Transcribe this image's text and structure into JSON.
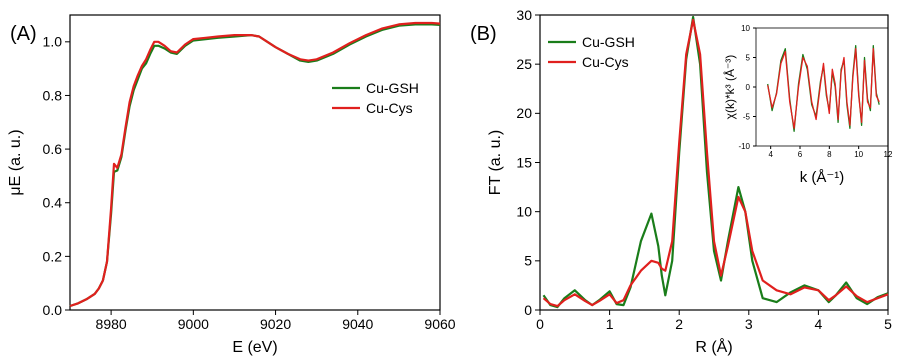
{
  "colors": {
    "green": "#1a7d1a",
    "red": "#e0201e",
    "axis": "#000000"
  },
  "chart_data": [
    {
      "type": "line",
      "panel_label": "(A)",
      "xlabel": "E (eV)",
      "ylabel": "μE (a. u.)",
      "xlim": [
        8970,
        9060
      ],
      "ylim": [
        0.0,
        1.1
      ],
      "xticks": [
        8980,
        9000,
        9020,
        9040,
        9060
      ],
      "yticks": [
        0.0,
        0.2,
        0.4,
        0.6,
        0.8,
        1.0
      ],
      "legend": "right",
      "series": [
        {
          "name": "Cu-GSH",
          "color": "#1a7d1a",
          "x": [
            8970,
            8972,
            8974,
            8976,
            8977,
            8978,
            8979,
            8980,
            8980.7,
            8981.5,
            8982.5,
            8983.5,
            8984.5,
            8985.5,
            8986.5,
            8987.5,
            8988.5,
            8989.5,
            8990.5,
            8991.5,
            8993,
            8994.5,
            8996,
            8998,
            9000,
            9003,
            9006,
            9010,
            9014,
            9016,
            9018,
            9020,
            9023,
            9026,
            9028,
            9030,
            9034,
            9038,
            9042,
            9046,
            9050,
            9054,
            9058,
            9060
          ],
          "y": [
            0.015,
            0.025,
            0.04,
            0.06,
            0.08,
            0.11,
            0.18,
            0.36,
            0.515,
            0.52,
            0.57,
            0.67,
            0.76,
            0.82,
            0.86,
            0.9,
            0.92,
            0.955,
            0.985,
            0.985,
            0.975,
            0.96,
            0.955,
            0.985,
            1.005,
            1.01,
            1.015,
            1.02,
            1.025,
            1.02,
            1.0,
            0.98,
            0.955,
            0.93,
            0.925,
            0.93,
            0.955,
            0.99,
            1.02,
            1.045,
            1.06,
            1.065,
            1.065,
            1.063
          ]
        },
        {
          "name": "Cu-Cys",
          "color": "#e0201e",
          "x": [
            8970,
            8972,
            8974,
            8976,
            8977,
            8978,
            8979,
            8980,
            8980.7,
            8981.5,
            8982.5,
            8983.5,
            8984.5,
            8985.5,
            8986.5,
            8987.5,
            8988.5,
            8989.5,
            8990.5,
            8991.5,
            8993,
            8994.5,
            8996,
            8998,
            9000,
            9003,
            9006,
            9010,
            9014,
            9016,
            9018,
            9020,
            9023,
            9026,
            9028,
            9030,
            9034,
            9038,
            9042,
            9046,
            9050,
            9054,
            9058,
            9060
          ],
          "y": [
            0.015,
            0.025,
            0.04,
            0.06,
            0.08,
            0.11,
            0.18,
            0.38,
            0.545,
            0.53,
            0.58,
            0.68,
            0.775,
            0.835,
            0.875,
            0.91,
            0.935,
            0.97,
            1.0,
            1.0,
            0.985,
            0.965,
            0.96,
            0.99,
            1.01,
            1.015,
            1.02,
            1.025,
            1.025,
            1.02,
            1.0,
            0.98,
            0.955,
            0.935,
            0.93,
            0.935,
            0.96,
            0.995,
            1.025,
            1.05,
            1.065,
            1.07,
            1.07,
            1.068
          ]
        }
      ]
    },
    {
      "type": "line",
      "panel_label": "(B)",
      "xlabel": "R (Å)",
      "ylabel": "FT (a. u.)",
      "xlim": [
        0,
        5
      ],
      "ylim": [
        0,
        30
      ],
      "xticks": [
        0,
        1,
        2,
        3,
        4,
        5
      ],
      "yticks": [
        0,
        5,
        10,
        15,
        20,
        25,
        30
      ],
      "legend": "top-left",
      "series": [
        {
          "name": "Cu-GSH",
          "color": "#1a7d1a",
          "x": [
            0.05,
            0.15,
            0.25,
            0.35,
            0.5,
            0.65,
            0.75,
            0.85,
            1.0,
            1.1,
            1.2,
            1.3,
            1.45,
            1.6,
            1.7,
            1.75,
            1.8,
            1.9,
            2.0,
            2.1,
            2.2,
            2.3,
            2.4,
            2.5,
            2.6,
            2.7,
            2.85,
            2.95,
            3.05,
            3.2,
            3.4,
            3.6,
            3.8,
            4.0,
            4.15,
            4.25,
            4.4,
            4.55,
            4.7,
            4.85,
            5.0
          ],
          "y": [
            1.5,
            0.5,
            0.3,
            1.2,
            2.0,
            1.0,
            0.5,
            1.0,
            1.9,
            0.6,
            0.5,
            2.3,
            7.0,
            9.8,
            6.5,
            3.5,
            1.5,
            5.0,
            16.0,
            25.5,
            29.8,
            25.0,
            14.0,
            6.0,
            3.0,
            7.0,
            12.5,
            10.0,
            5.0,
            1.2,
            0.8,
            1.8,
            2.5,
            2.0,
            0.8,
            1.5,
            2.8,
            1.2,
            0.6,
            1.3,
            1.7
          ]
        },
        {
          "name": "Cu-Cys",
          "color": "#e0201e",
          "x": [
            0.05,
            0.15,
            0.25,
            0.35,
            0.5,
            0.65,
            0.75,
            0.85,
            1.0,
            1.1,
            1.2,
            1.3,
            1.45,
            1.6,
            1.7,
            1.75,
            1.8,
            1.9,
            2.0,
            2.1,
            2.2,
            2.3,
            2.4,
            2.5,
            2.6,
            2.7,
            2.85,
            2.95,
            3.05,
            3.2,
            3.4,
            3.6,
            3.8,
            4.0,
            4.15,
            4.25,
            4.4,
            4.55,
            4.7,
            4.85,
            5.0
          ],
          "y": [
            1.2,
            0.6,
            0.4,
            1.0,
            1.6,
            0.9,
            0.5,
            0.9,
            1.6,
            0.7,
            1.0,
            2.5,
            4.0,
            5.0,
            4.8,
            4.2,
            4.0,
            7.0,
            17.0,
            26.0,
            29.5,
            26.0,
            16.0,
            7.0,
            3.5,
            6.5,
            11.5,
            10.0,
            6.0,
            3.0,
            2.0,
            1.6,
            2.3,
            2.0,
            1.0,
            1.5,
            2.4,
            1.4,
            0.8,
            1.2,
            1.6
          ]
        }
      ]
    },
    {
      "type": "line",
      "panel_label": "",
      "inset": true,
      "xlabel": "k (Å⁻¹)",
      "ylabel": "χ(k)*k³ (Å⁻³)",
      "xlim": [
        3,
        12
      ],
      "ylim": [
        -10,
        10
      ],
      "xticks": [
        4,
        6,
        8,
        10,
        12
      ],
      "yticks": [
        -10,
        -5,
        0,
        5,
        10
      ],
      "series": [
        {
          "name": "Cu-GSH",
          "color": "#1a7d1a",
          "x": [
            3.8,
            4.1,
            4.4,
            4.7,
            5.0,
            5.3,
            5.6,
            5.9,
            6.2,
            6.5,
            6.8,
            7.1,
            7.4,
            7.6,
            7.8,
            8.0,
            8.2,
            8.4,
            8.6,
            8.8,
            9.0,
            9.2,
            9.4,
            9.6,
            9.8,
            10.0,
            10.2,
            10.4,
            10.6,
            10.8,
            11.0,
            11.2,
            11.4
          ],
          "y": [
            0.5,
            -4.0,
            -1.0,
            4.5,
            6.5,
            -2.0,
            -7.5,
            0.5,
            5.5,
            3.0,
            -3.0,
            -5.0,
            1.0,
            3.5,
            -1.5,
            -4.0,
            2.5,
            0.0,
            -6.0,
            3.0,
            4.5,
            -3.0,
            -7.0,
            2.0,
            7.0,
            -1.0,
            -6.5,
            5.0,
            -2.0,
            -4.0,
            7.0,
            -1.0,
            -3.0
          ]
        },
        {
          "name": "Cu-Cys",
          "color": "#e0201e",
          "x": [
            3.8,
            4.1,
            4.4,
            4.7,
            5.0,
            5.3,
            5.6,
            5.9,
            6.2,
            6.5,
            6.8,
            7.1,
            7.4,
            7.6,
            7.8,
            8.0,
            8.2,
            8.4,
            8.6,
            8.8,
            9.0,
            9.2,
            9.4,
            9.6,
            9.8,
            10.0,
            10.2,
            10.4,
            10.6,
            10.8,
            11.0,
            11.2,
            11.4
          ],
          "y": [
            0.3,
            -3.5,
            -1.2,
            4.0,
            6.0,
            -2.5,
            -7.0,
            0.0,
            5.0,
            3.5,
            -2.5,
            -5.5,
            0.5,
            4.0,
            -1.0,
            -4.5,
            3.0,
            0.5,
            -5.5,
            2.5,
            5.0,
            -2.5,
            -6.5,
            1.5,
            6.5,
            -1.5,
            -6.0,
            4.5,
            -2.5,
            -3.5,
            6.5,
            -1.5,
            -2.5
          ]
        }
      ]
    }
  ]
}
